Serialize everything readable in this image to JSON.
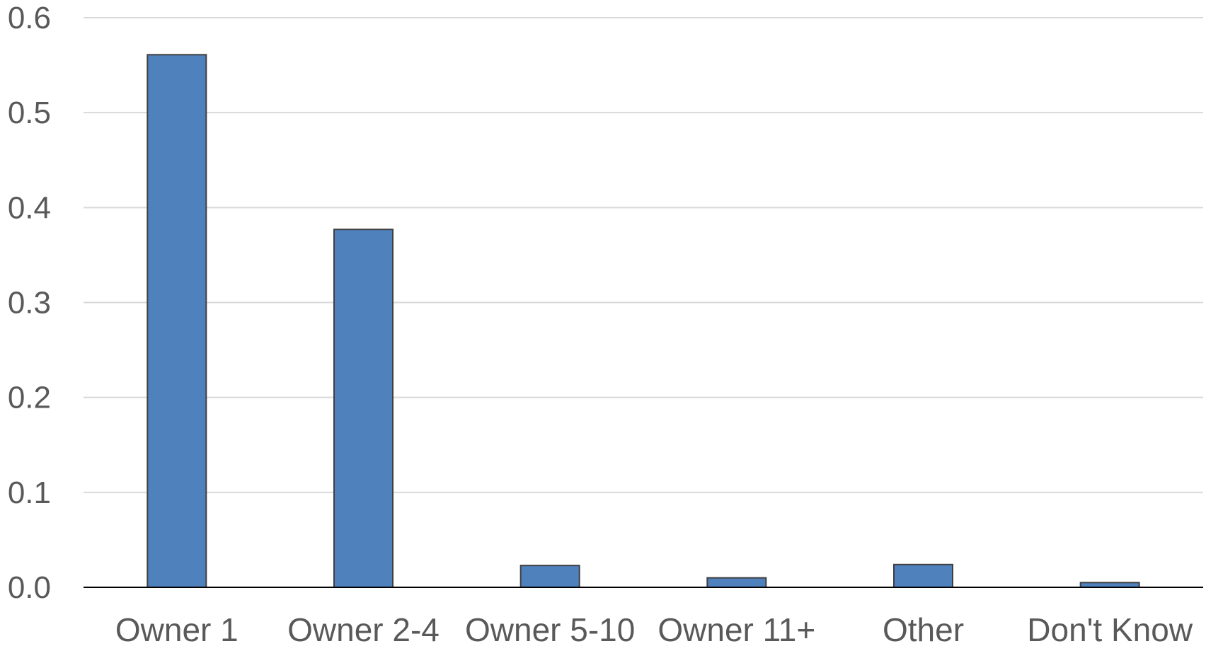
{
  "chart_data": {
    "type": "bar",
    "title": "",
    "xlabel": "",
    "ylabel": "",
    "categories": [
      "Owner 1",
      "Owner 2-4",
      "Owner 5-10",
      "Owner 11+",
      "Other",
      "Don't Know"
    ],
    "values": [
      0.561,
      0.377,
      0.023,
      0.01,
      0.024,
      0.005
    ],
    "ylim": [
      0,
      0.6
    ],
    "y_ticks": [
      "0.0",
      "0.1",
      "0.2",
      "0.3",
      "0.4",
      "0.5",
      "0.6"
    ],
    "grid": true,
    "legend": "none",
    "colors": {
      "bar_fill": "#4F81BD",
      "bar_stroke": "#3F3F3F",
      "grid": "#D9D9D9",
      "axis": "#000000",
      "text": "#595959"
    }
  }
}
